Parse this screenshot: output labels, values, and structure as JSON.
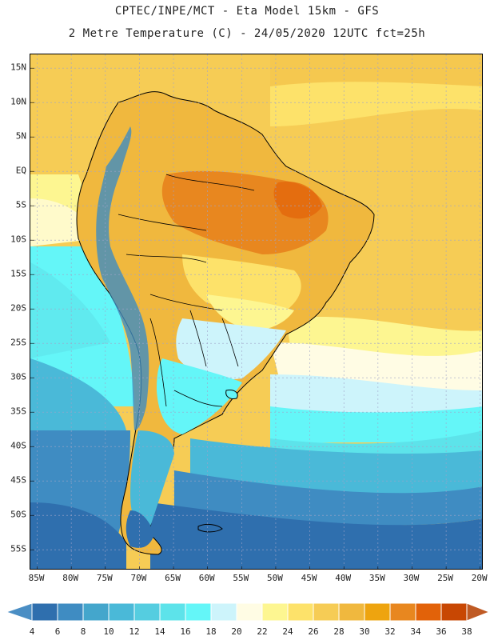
{
  "title": {
    "line1": "CPTEC/INPE/MCT -  Eta Model 15km - GFS",
    "line2": "2 Metre Temperature (C) - 24/05/2020 12UTC fct=25h"
  },
  "map": {
    "lat_labels": [
      "15N",
      "10N",
      "5N",
      "EQ",
      "5S",
      "10S",
      "15S",
      "20S",
      "25S",
      "30S",
      "35S",
      "40S",
      "45S",
      "50S",
      "55S"
    ],
    "lat_values": [
      15,
      10,
      5,
      0,
      -5,
      -10,
      -15,
      -20,
      -25,
      -30,
      -35,
      -40,
      -45,
      -50,
      -55
    ],
    "lon_labels": [
      "85W",
      "80W",
      "75W",
      "70W",
      "65W",
      "60W",
      "55W",
      "50W",
      "45W",
      "40W",
      "35W",
      "30W",
      "25W",
      "20W"
    ],
    "lon_values": [
      -85,
      -80,
      -75,
      -70,
      -65,
      -60,
      -55,
      -50,
      -45,
      -40,
      -35,
      -30,
      -25,
      -20
    ],
    "lat_range": [
      -58,
      17
    ],
    "lon_range": [
      -86,
      -19.5
    ]
  },
  "colorbar": {
    "labels": [
      "4",
      "6",
      "8",
      "10",
      "12",
      "14",
      "16",
      "18",
      "20",
      "22",
      "24",
      "26",
      "28",
      "30",
      "32",
      "34",
      "36",
      "38"
    ],
    "colors": [
      "#4a8ec4",
      "#2f6fae",
      "#3f8cc2",
      "#44a6cc",
      "#4ab9d8",
      "#55cde0",
      "#5de3ea",
      "#64f6f8",
      "#cdf4fb",
      "#fffce4",
      "#fdf691",
      "#fde26a",
      "#f6cc55",
      "#f0b83e",
      "#eea40f",
      "#e8871f",
      "#e26209",
      "#c84703",
      "#bf5a24"
    ]
  }
}
